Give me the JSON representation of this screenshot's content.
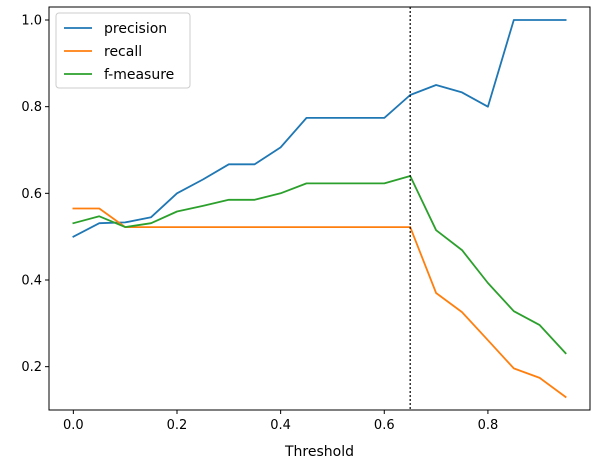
{
  "chart_data": {
    "type": "line",
    "title": "",
    "xlabel": "Threshold",
    "ylabel": "",
    "xlim": [
      -0.047,
      0.997
    ],
    "ylim": [
      0.1,
      1.03
    ],
    "x": [
      0.0,
      0.05,
      0.1,
      0.15,
      0.2,
      0.25,
      0.3,
      0.35,
      0.4,
      0.45,
      0.5,
      0.55,
      0.6,
      0.65,
      0.7,
      0.75,
      0.8,
      0.85,
      0.9,
      0.95
    ],
    "x_ticks": [
      0.0,
      0.2,
      0.4,
      0.6,
      0.8
    ],
    "x_tick_labels": [
      "0.0",
      "0.2",
      "0.4",
      "0.6",
      "0.8"
    ],
    "y_ticks": [
      0.2,
      0.4,
      0.6,
      0.8,
      1.0
    ],
    "y_tick_labels": [
      "0.2",
      "0.4",
      "0.6",
      "0.8",
      "1.0"
    ],
    "grid": false,
    "legend_position": "top-left",
    "vline": {
      "x": 0.65,
      "style": "dotted",
      "color": "#000000"
    },
    "series": [
      {
        "name": "precision",
        "color": "#1f77b4",
        "values": [
          0.5,
          0.531,
          0.533,
          0.545,
          0.6,
          0.632,
          0.667,
          0.667,
          0.706,
          0.774,
          0.774,
          0.774,
          0.774,
          0.827,
          0.85,
          0.833,
          0.8,
          1.0,
          1.0,
          1.0
        ]
      },
      {
        "name": "recall",
        "color": "#ff7f0e",
        "values": [
          0.565,
          0.565,
          0.522,
          0.522,
          0.522,
          0.522,
          0.522,
          0.522,
          0.522,
          0.522,
          0.522,
          0.522,
          0.522,
          0.522,
          0.37,
          0.326,
          0.261,
          0.196,
          0.174,
          0.13
        ]
      },
      {
        "name": "f-measure",
        "color": "#2ca02c",
        "values": [
          0.531,
          0.547,
          0.522,
          0.531,
          0.558,
          0.571,
          0.585,
          0.585,
          0.6,
          0.623,
          0.623,
          0.623,
          0.623,
          0.64,
          0.515,
          0.469,
          0.393,
          0.328,
          0.296,
          0.231
        ]
      }
    ]
  }
}
